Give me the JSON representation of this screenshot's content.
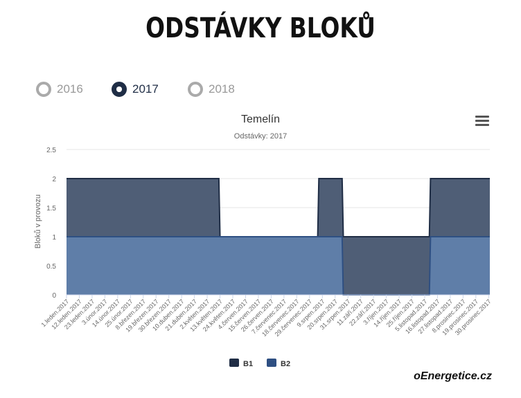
{
  "page_title": "ODSTÁVKY BLOKŮ",
  "year_options": [
    {
      "label": "2016",
      "selected": false
    },
    {
      "label": "2017",
      "selected": true
    },
    {
      "label": "2018",
      "selected": false
    }
  ],
  "menu_icon": "hamburger-menu-icon",
  "brand": "oEnergetice.cz",
  "colors": {
    "B1": "#4f5e76",
    "B1_line": "#1f2d45",
    "B2": "#5f7ea8",
    "B2_line": "#2e4f82"
  },
  "chart_data": {
    "type": "area",
    "stacked": true,
    "step": true,
    "title": "Temelín",
    "subtitle": "Odstávky: 2017",
    "ylabel": "Bloků v provozu",
    "xlabel": "",
    "ylim": [
      0,
      2.5
    ],
    "yticks": [
      "0",
      "0.5",
      "1",
      "1.5",
      "2",
      "2.5"
    ],
    "grid": true,
    "legend_position": "bottom-center",
    "x_tick_labels": [
      "1.leden.2017",
      "12.leden.2017",
      "23.leden.2017",
      "3.únor.2017",
      "14.únor.2017",
      "25.únor.2017",
      "8.březen.2017",
      "19.březen.2017",
      "30.březen.2017",
      "10.duben.2017",
      "21.duben.2017",
      "2.květen.2017",
      "13.květen.2017",
      "24.květen.2017",
      "4.červen.2017",
      "15.červen.2017",
      "26.červen.2017",
      "7.červenec.2017",
      "18.červenec.2017",
      "29.červenec.2017",
      "9.srpen.2017",
      "20.srpen.2017",
      "31.srpen.2017",
      "11.září.2017",
      "22.září.2017",
      "3.říjen.2017",
      "14.říjen.2017",
      "25.říjen.2017",
      "5.listopad.2017",
      "16.listopad.2017",
      "27.listopad.2017",
      "8.prosinec.2017",
      "19.prosinec.2017",
      "30.prosinec.2017"
    ],
    "series": [
      {
        "name": "B1",
        "points": [
          [
            "2017-01-01",
            1
          ],
          [
            "2017-05-12",
            1
          ],
          [
            "2017-05-13",
            0
          ],
          [
            "2017-08-05",
            0
          ],
          [
            "2017-08-06",
            1
          ],
          [
            "2017-12-31",
            1
          ]
        ]
      },
      {
        "name": "B2",
        "points": [
          [
            "2017-01-01",
            1
          ],
          [
            "2017-05-12",
            1
          ],
          [
            "2017-05-13",
            1
          ],
          [
            "2017-08-05",
            1
          ],
          [
            "2017-08-06",
            1
          ],
          [
            "2017-08-26",
            1
          ],
          [
            "2017-08-27",
            0
          ],
          [
            "2017-11-09",
            0
          ],
          [
            "2017-11-10",
            1
          ],
          [
            "2017-12-31",
            1
          ]
        ]
      }
    ]
  }
}
